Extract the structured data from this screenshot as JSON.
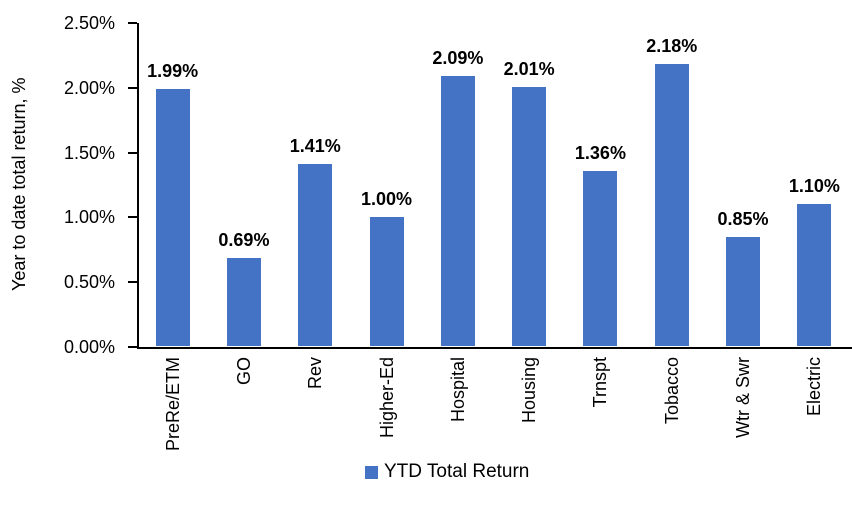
{
  "chart_data": {
    "type": "bar",
    "categories": [
      "PreRe/ETM",
      "GO",
      "Rev",
      "Higher-Ed",
      "Hospital",
      "Housing",
      "Trnspt",
      "Tobacco",
      "Wtr & Swr",
      "Electric"
    ],
    "values": [
      1.99,
      0.69,
      1.41,
      1.0,
      2.09,
      2.01,
      1.36,
      2.18,
      0.85,
      1.1
    ],
    "data_labels": [
      "1.99%",
      "0.69%",
      "1.41%",
      "1.00%",
      "2.09%",
      "2.01%",
      "1.36%",
      "2.18%",
      "0.85%",
      "1.10%"
    ],
    "title": "",
    "xlabel": "",
    "ylabel": "Year to date total return, %",
    "ylim": [
      0,
      2.5
    ],
    "ytick_step": 0.5,
    "ytick_labels": [
      "0.00%",
      "0.50%",
      "1.00%",
      "1.50%",
      "2.00%",
      "2.50%"
    ],
    "grid": false,
    "legend_position": "bottom",
    "legend": [
      "YTD Total Return"
    ],
    "bar_color": "#4472C4",
    "axis_color": "#000000",
    "label_color": "#000000"
  }
}
